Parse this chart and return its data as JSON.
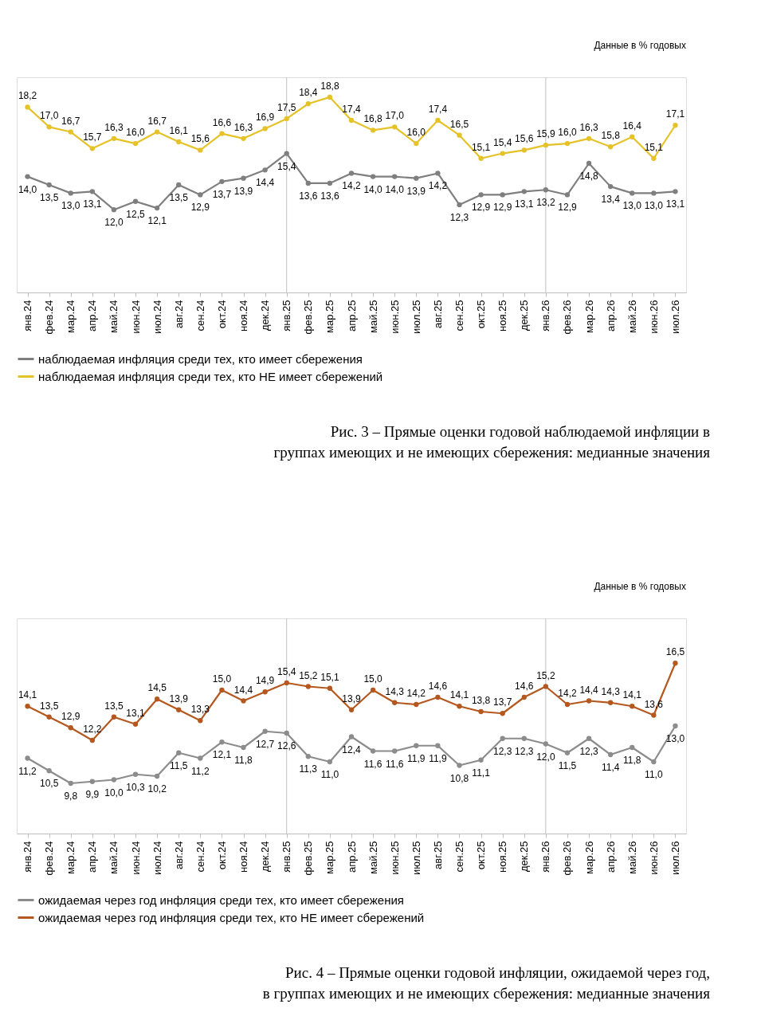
{
  "chart_data": [
    {
      "type": "line",
      "categories": [
        "янв.24",
        "фев.24",
        "мар.24",
        "апр.24",
        "май.24",
        "июн.24",
        "июл.24",
        "авг.24",
        "сен.24",
        "окт.24",
        "ноя.24",
        "дек.24",
        "янв.25",
        "фев.25",
        "мар.25",
        "апр.25",
        "май.25",
        "июн.25",
        "июл.25",
        "авг.25",
        "сен.25",
        "окт.25",
        "ноя.25",
        "дек.25",
        "янв.26",
        "фев.26",
        "мар.26",
        "апр.26",
        "май.26",
        "июн.26",
        "июл.26"
      ],
      "series": [
        {
          "name": "наблюдаемая инфляция  среди тех, кто имеет сбережения",
          "color": "#7f7f7f",
          "values": [
            14.0,
            13.5,
            13.0,
            13.1,
            12.0,
            12.5,
            12.1,
            13.5,
            12.9,
            13.7,
            13.9,
            14.4,
            15.4,
            13.6,
            13.6,
            14.2,
            14.0,
            14.0,
            13.9,
            14.2,
            12.3,
            12.9,
            12.9,
            13.1,
            13.2,
            12.9,
            14.8,
            13.4,
            13.0,
            13.0,
            13.1
          ],
          "value_labels": [
            "14,0",
            "13,5",
            "13,0",
            "13,1",
            "12,0",
            "12,5",
            "12,1",
            "13,5",
            "12,9",
            "13,7",
            "13,9",
            "14,4",
            "15,4",
            "13,6",
            "13,6",
            "14,2",
            "14,0",
            "14,0",
            "13,9",
            "14,2",
            "12,3",
            "12,9",
            "12,9",
            "13,1",
            "13,2",
            "12,9",
            "14,8",
            "13,4",
            "13,0",
            "13,0",
            "13,1"
          ]
        },
        {
          "name": "наблюдаемая инфляция  среди тех, кто НЕ имеет сбережений",
          "color": "#e6c229",
          "values": [
            18.2,
            17.0,
            16.7,
            15.7,
            16.3,
            16.0,
            16.7,
            16.1,
            15.6,
            16.6,
            16.3,
            16.9,
            17.5,
            18.4,
            18.8,
            17.4,
            16.8,
            17.0,
            16.0,
            17.4,
            16.5,
            15.1,
            15.4,
            15.6,
            15.9,
            16.0,
            16.3,
            15.8,
            16.4,
            15.1,
            17.1
          ],
          "value_labels": [
            "18,2",
            "17,0",
            "16,7",
            "15,7",
            "16,3",
            "16,0",
            "16,7",
            "16,1",
            "15,6",
            "16,6",
            "16,3",
            "16,9",
            "17,5",
            "18,4",
            "18,8",
            "17,4",
            "16,8",
            "17,0",
            "16,0",
            "17,4",
            "16,5",
            "15,1",
            "15,4",
            "15,6",
            "15,9",
            "16,0",
            "16,3",
            "15,8",
            "16,4",
            "15,1",
            "17,1"
          ]
        }
      ],
      "ylim": [
        7,
        20
      ],
      "tick_labels": "x",
      "grid": false,
      "legend": "bottom",
      "marker": "circle",
      "line_style": "solid",
      "ref_lines": [
        {
          "axis": "x",
          "value": "янв.25",
          "color": "#bfbfbf"
        },
        {
          "axis": "x",
          "value": "янв.26",
          "color": "#bfbfbf"
        }
      ],
      "annotations": [
        "Данные в % годовых",
        "Рис. 3 – Прямые оценки годовой наблюдаемой инфляции в группах имеющих и не имеющих сбережения: медианные значения"
      ]
    },
    {
      "type": "line",
      "categories": [
        "янв.24",
        "фев.24",
        "мар.24",
        "апр.24",
        "май.24",
        "июн.24",
        "июл.24",
        "авг.24",
        "сен.24",
        "окт.24",
        "ноя.24",
        "дек.24",
        "янв.25",
        "фев.25",
        "мар.25",
        "апр.25",
        "май.25",
        "июн.25",
        "июл.25",
        "авг.25",
        "сен.25",
        "окт.25",
        "ноя.25",
        "дек.25",
        "янв.26",
        "фев.26",
        "мар.26",
        "апр.26",
        "май.26",
        "июн.26",
        "июл.26"
      ],
      "series": [
        {
          "name": "ожидаемая через год инфляция  среди тех, кто имеет сбережения",
          "color": "#8c8c8c",
          "values": [
            11.2,
            10.5,
            9.8,
            9.9,
            10.0,
            10.3,
            10.2,
            11.5,
            11.2,
            12.1,
            11.8,
            12.7,
            12.6,
            11.3,
            11.0,
            12.4,
            11.6,
            11.6,
            11.9,
            11.9,
            10.8,
            11.1,
            12.3,
            12.3,
            12.0,
            11.5,
            12.3,
            11.4,
            11.8,
            11.0,
            13.0
          ],
          "value_labels": [
            "11,2",
            "10,5",
            "9,8",
            "9,9",
            "10,0",
            "10,3",
            "10,2",
            "11,5",
            "11,2",
            "12,1",
            "11,8",
            "12,7",
            "12,6",
            "11,3",
            "11,0",
            "12,4",
            "11,6",
            "11,6",
            "11,9",
            "11,9",
            "10,8",
            "11,1",
            "12,3",
            "12,3",
            "12,0",
            "11,5",
            "12,3",
            "11,4",
            "11,8",
            "11,0",
            "13,0"
          ]
        },
        {
          "name": "ожидаемая через год инфляция  среди тех, кто НЕ имеет сбережений",
          "color": "#b5581f",
          "values": [
            14.1,
            13.5,
            12.9,
            12.2,
            13.5,
            13.1,
            14.5,
            13.9,
            13.3,
            15.0,
            14.4,
            14.9,
            15.4,
            15.2,
            15.1,
            13.9,
            15.0,
            14.3,
            14.2,
            14.6,
            14.1,
            13.8,
            13.7,
            14.6,
            15.2,
            14.2,
            14.4,
            14.3,
            14.1,
            13.6,
            16.5
          ],
          "value_labels": [
            "14,1",
            "13,5",
            "12,9",
            "12,2",
            "13,5",
            "13,1",
            "14,5",
            "13,9",
            "13,3",
            "15,0",
            "14,4",
            "14,9",
            "15,4",
            "15,2",
            "15,1",
            "13,9",
            "15,0",
            "14,3",
            "14,2",
            "14,6",
            "14,1",
            "13,8",
            "13,7",
            "14,6",
            "15,2",
            "14,2",
            "14,4",
            "14,3",
            "14,1",
            "13,6",
            "16,5"
          ]
        }
      ],
      "ylim": [
        7,
        19
      ],
      "tick_labels": "x",
      "grid": false,
      "legend": "bottom",
      "marker": "circle",
      "line_style": "solid",
      "ref_lines": [
        {
          "axis": "x",
          "value": "янв.25",
          "color": "#bfbfbf"
        },
        {
          "axis": "x",
          "value": "янв.26",
          "color": "#bfbfbf"
        }
      ],
      "annotations": [
        "Данные в % годовых",
        "Рис. 4 – Прямые оценки годовой инфляции, ожидаемой через год, в группах имеющих и не имеющих сбережения: медианные значения"
      ]
    }
  ]
}
